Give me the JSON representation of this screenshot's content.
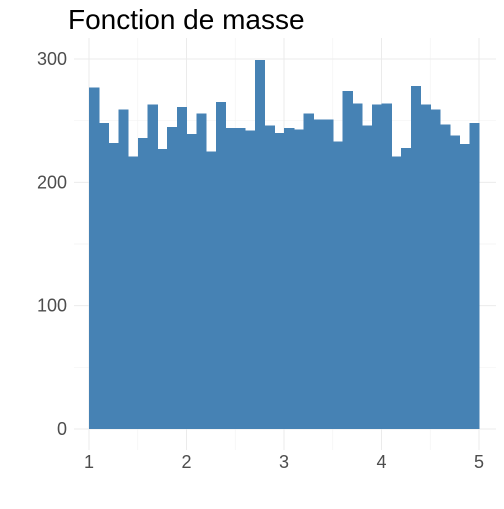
{
  "chart_data": {
    "type": "bar",
    "title": "Fonction de masse",
    "xlabel": "",
    "ylabel": "",
    "xlim": [
      1,
      5
    ],
    "ylim": [
      0,
      300
    ],
    "x_ticks": [
      "1",
      "2",
      "3",
      "4",
      "5"
    ],
    "y_ticks": [
      "0",
      "100",
      "200",
      "300"
    ],
    "grid": true,
    "bar_color": "#4682B4",
    "bins": [
      {
        "x0": 1.0,
        "x1": 1.1,
        "count": 277
      },
      {
        "x0": 1.1,
        "x1": 1.2,
        "count": 248
      },
      {
        "x0": 1.2,
        "x1": 1.3,
        "count": 232
      },
      {
        "x0": 1.3,
        "x1": 1.4,
        "count": 259
      },
      {
        "x0": 1.4,
        "x1": 1.5,
        "count": 221
      },
      {
        "x0": 1.5,
        "x1": 1.6,
        "count": 236
      },
      {
        "x0": 1.6,
        "x1": 1.7,
        "count": 263
      },
      {
        "x0": 1.7,
        "x1": 1.8,
        "count": 227
      },
      {
        "x0": 1.8,
        "x1": 1.9,
        "count": 245
      },
      {
        "x0": 1.9,
        "x1": 2.0,
        "count": 261
      },
      {
        "x0": 2.0,
        "x1": 2.1,
        "count": 239
      },
      {
        "x0": 2.1,
        "x1": 2.2,
        "count": 256
      },
      {
        "x0": 2.2,
        "x1": 2.3,
        "count": 225
      },
      {
        "x0": 2.3,
        "x1": 2.4,
        "count": 265
      },
      {
        "x0": 2.4,
        "x1": 2.5,
        "count": 244
      },
      {
        "x0": 2.5,
        "x1": 2.6,
        "count": 244
      },
      {
        "x0": 2.6,
        "x1": 2.7,
        "count": 242
      },
      {
        "x0": 2.7,
        "x1": 2.8,
        "count": 299
      },
      {
        "x0": 2.8,
        "x1": 2.9,
        "count": 246
      },
      {
        "x0": 2.9,
        "x1": 3.0,
        "count": 240
      },
      {
        "x0": 3.0,
        "x1": 3.1,
        "count": 244
      },
      {
        "x0": 3.1,
        "x1": 3.2,
        "count": 243
      },
      {
        "x0": 3.2,
        "x1": 3.3,
        "count": 256
      },
      {
        "x0": 3.3,
        "x1": 3.4,
        "count": 251
      },
      {
        "x0": 3.4,
        "x1": 3.5,
        "count": 251
      },
      {
        "x0": 3.5,
        "x1": 3.6,
        "count": 233
      },
      {
        "x0": 3.6,
        "x1": 3.7,
        "count": 274
      },
      {
        "x0": 3.7,
        "x1": 3.8,
        "count": 264
      },
      {
        "x0": 3.8,
        "x1": 3.9,
        "count": 246
      },
      {
        "x0": 3.9,
        "x1": 4.0,
        "count": 263
      },
      {
        "x0": 4.0,
        "x1": 4.1,
        "count": 264
      },
      {
        "x0": 4.1,
        "x1": 4.2,
        "count": 221
      },
      {
        "x0": 4.2,
        "x1": 4.3,
        "count": 228
      },
      {
        "x0": 4.3,
        "x1": 4.4,
        "count": 278
      },
      {
        "x0": 4.4,
        "x1": 4.5,
        "count": 263
      },
      {
        "x0": 4.5,
        "x1": 4.6,
        "count": 259
      },
      {
        "x0": 4.6,
        "x1": 4.7,
        "count": 247
      },
      {
        "x0": 4.7,
        "x1": 4.8,
        "count": 238
      },
      {
        "x0": 4.8,
        "x1": 4.9,
        "count": 231
      },
      {
        "x0": 4.9,
        "x1": 5.0,
        "count": 248
      }
    ]
  }
}
